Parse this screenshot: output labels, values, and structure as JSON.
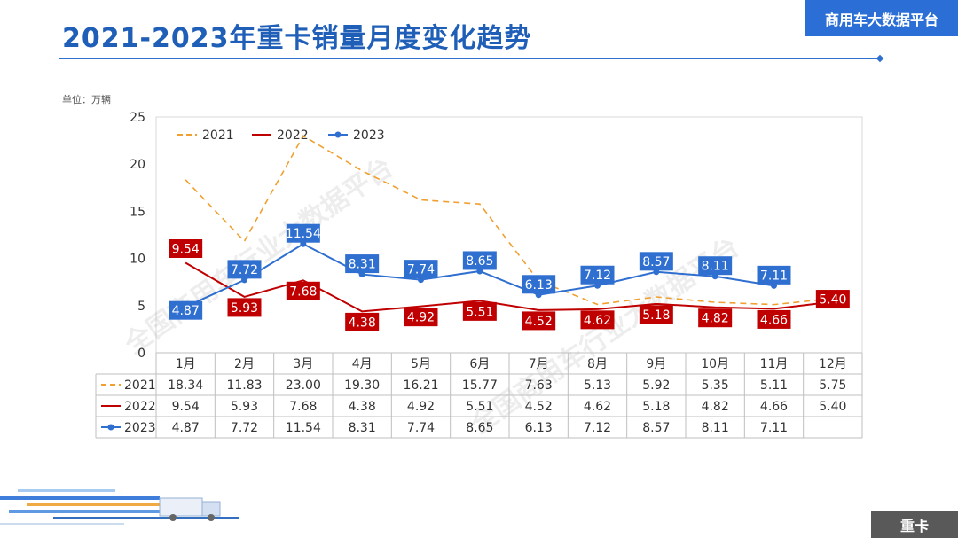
{
  "header": {
    "title": "2021-2023年重卡销量月度变化趋势",
    "brand": "商用车大数据平台"
  },
  "unit_label": "单位：万辆",
  "footer_tag": "重卡",
  "watermark": "全国商用车行业大数据平台",
  "colors": {
    "s2021": "#f0a030",
    "s2022": "#c00000",
    "s2023": "#2f6fd0",
    "brand": "#2b6fd6"
  },
  "chart_data": {
    "type": "line",
    "categories": [
      "1月",
      "2月",
      "3月",
      "4月",
      "5月",
      "6月",
      "7月",
      "8月",
      "9月",
      "10月",
      "11月",
      "12月"
    ],
    "ylim": [
      0,
      25
    ],
    "yticks": [
      0,
      5,
      10,
      15,
      20,
      25
    ],
    "legend_position": "top-left",
    "grid": false,
    "series": [
      {
        "name": "2021",
        "style": "dashed",
        "values": [
          18.34,
          11.83,
          23.0,
          19.3,
          16.21,
          15.77,
          7.63,
          5.13,
          5.92,
          5.35,
          5.11,
          5.75
        ],
        "labels": [
          "18.34",
          "11.83",
          "23.00",
          "19.30",
          "16.21",
          "15.77",
          "7.63",
          "5.13",
          "5.92",
          "5.35",
          "5.11",
          "5.75"
        ]
      },
      {
        "name": "2022",
        "style": "solid",
        "values": [
          9.54,
          5.93,
          7.68,
          4.38,
          4.92,
          5.51,
          4.52,
          4.62,
          5.18,
          4.82,
          4.66,
          5.4
        ],
        "labels": [
          "9.54",
          "5.93",
          "7.68",
          "4.38",
          "4.92",
          "5.51",
          "4.52",
          "4.62",
          "5.18",
          "4.82",
          "4.66",
          "5.40"
        ]
      },
      {
        "name": "2023",
        "style": "solid-marker",
        "values": [
          4.87,
          7.72,
          11.54,
          8.31,
          7.74,
          8.65,
          6.13,
          7.12,
          8.57,
          8.11,
          7.11,
          null
        ],
        "labels": [
          "4.87",
          "7.72",
          "11.54",
          "8.31",
          "7.74",
          "8.65",
          "6.13",
          "7.12",
          "8.57",
          "8.11",
          "7.11",
          ""
        ]
      }
    ]
  }
}
